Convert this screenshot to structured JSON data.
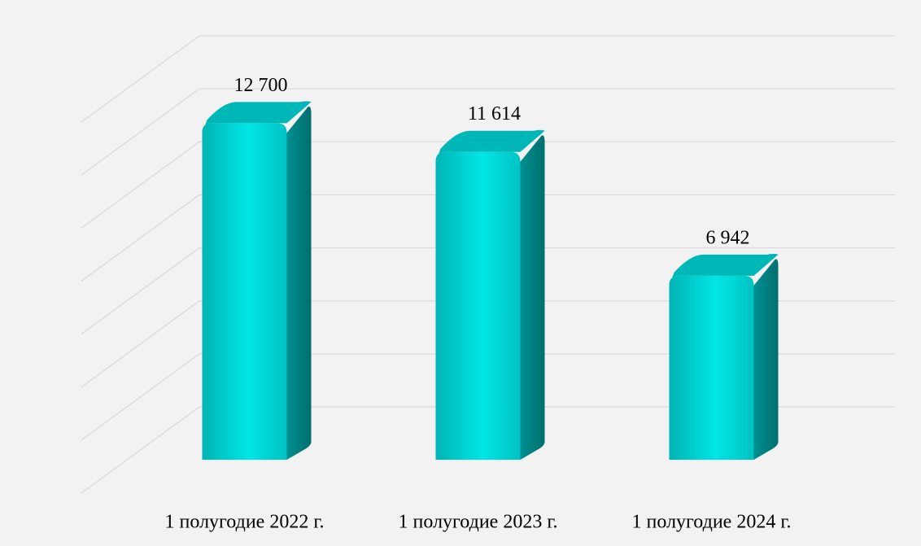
{
  "chart_data": {
    "type": "bar",
    "categories": [
      "1 полугодие 2022 г.",
      "1 полугодие 2023 г.",
      "1 полугодие 2024 г."
    ],
    "values": [
      12700,
      11614,
      6942
    ],
    "value_labels": [
      "12 700",
      "11 614",
      "6 942"
    ],
    "color": "#00d4d4",
    "ylim": [
      0,
      14000
    ],
    "yticks": [
      0,
      2000,
      4000,
      6000,
      8000,
      10000,
      12000,
      14000
    ],
    "grid": true
  }
}
